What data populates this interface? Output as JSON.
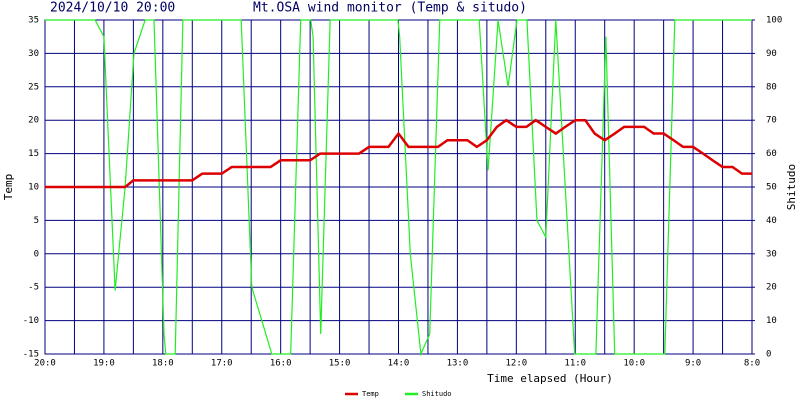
{
  "chart_data": {
    "type": "line",
    "date": "2024/10/10 20:00",
    "title": "Mt.OSA wind monitor (Temp & situdo)",
    "x_label": "Time elapsed (Hour)",
    "y_label": "Temp",
    "y2_label": "Shitudo",
    "xlim": [
      0,
      12
    ],
    "xticks": [
      {
        "value": 0,
        "label": "20:0"
      },
      {
        "value": 1,
        "label": "19:0"
      },
      {
        "value": 2,
        "label": "18:0"
      },
      {
        "value": 3,
        "label": "17:0"
      },
      {
        "value": 4,
        "label": "16:0"
      },
      {
        "value": 5,
        "label": "15:0"
      },
      {
        "value": 6,
        "label": "14:0"
      },
      {
        "value": 7,
        "label": "13:0"
      },
      {
        "value": 8,
        "label": "12:0"
      },
      {
        "value": 9,
        "label": "11:0"
      },
      {
        "value": 10,
        "label": "10:0"
      },
      {
        "value": 11,
        "label": "9:0"
      },
      {
        "value": 12,
        "label": "8:0"
      }
    ],
    "ylim": [
      -15,
      35
    ],
    "yticks": [
      35,
      30,
      25,
      20,
      15,
      10,
      5,
      0,
      -5,
      -10,
      -15
    ],
    "y2lim": [
      0,
      100
    ],
    "y2ticks": [
      100,
      90,
      80,
      70,
      60,
      50,
      40,
      30,
      20,
      10,
      0
    ],
    "grid": true,
    "legend": "bottom",
    "series": [
      {
        "name": "Temp",
        "color": "#dd0000",
        "x": [
          0,
          1.36,
          1.5,
          2.5,
          2.67,
          3,
          3.17,
          3.83,
          4,
          4.5,
          4.67,
          5.33,
          5.5,
          5.83,
          6,
          6.17,
          6.67,
          6.83,
          7.17,
          7.33,
          7.5,
          7.67,
          7.83,
          8,
          8.17,
          8.33,
          8.5,
          8.67,
          8.83,
          9,
          9.17,
          9.33,
          9.5,
          9.67,
          9.83,
          10.17,
          10.33,
          10.5,
          10.67,
          10.83,
          11,
          11.17,
          11.33,
          11.5,
          11.67,
          11.83,
          12
        ],
        "values": [
          10,
          10,
          11,
          11,
          12,
          12,
          13,
          13,
          14,
          14,
          15,
          15,
          16,
          16,
          18,
          16,
          16,
          17,
          17,
          16,
          17,
          19,
          20,
          19,
          19,
          20,
          19,
          18,
          19,
          20,
          20,
          18,
          17,
          18,
          19,
          19,
          18,
          18,
          17,
          16,
          16,
          15,
          14,
          13,
          13,
          12,
          12
        ]
      },
      {
        "name": "Shitudo",
        "color": "#22ee22",
        "axis": "y2",
        "x": [
          0,
          0.85,
          1.0,
          1.19,
          1.36,
          1.51,
          1.7,
          1.85,
          2.02,
          2.05,
          2.21,
          2.34,
          3.33,
          3.51,
          3.68,
          3.85,
          4.17,
          4.34,
          4.51,
          4.55,
          4.68,
          4.84,
          5.99,
          6.02,
          6.2,
          6.38,
          6.53,
          6.7,
          7.37,
          7.52,
          7.69,
          7.86,
          8.01,
          8.18,
          8.35,
          8.5,
          8.67,
          8.99,
          9.35,
          9.52,
          9.67,
          10.52,
          10.69,
          12
        ],
        "values": [
          100,
          100,
          95,
          19,
          50,
          90,
          100,
          100,
          6,
          0,
          0,
          100,
          100,
          20,
          10,
          0,
          0,
          100,
          100,
          95,
          6,
          100,
          100,
          95,
          30,
          0,
          6,
          100,
          100,
          55,
          100,
          80,
          100,
          100,
          40,
          35,
          100,
          0,
          0,
          95,
          0,
          0,
          100,
          100
        ]
      }
    ]
  }
}
